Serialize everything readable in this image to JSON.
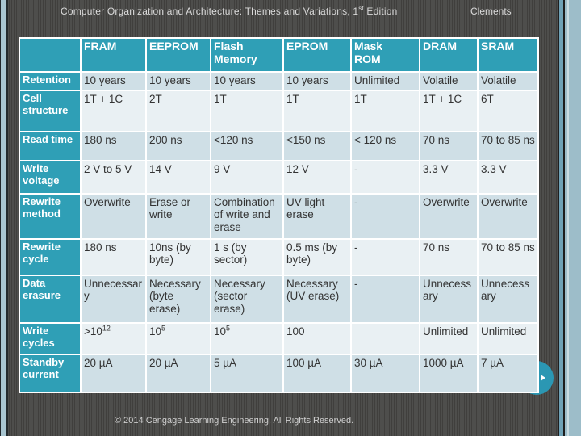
{
  "header": {
    "title_pre": "Computer Organization and Architecture: Themes and Variations, 1",
    "title_sup": "st",
    "title_post": " Edition",
    "author": "Clements"
  },
  "footer": {
    "copyright": "© 2014 Cengage Learning Engineering. All Rights Reserved."
  },
  "colors": {
    "header_teal": "#2f9fb6",
    "row_band_dark": "#cfdfe6",
    "row_band_light": "#e9f0f3",
    "background_gray": "#454543",
    "frame_blue_light": "#9dbdc9",
    "frame_blue_medium": "#6fa2b6",
    "nav_circle_teal": "#2b97b3",
    "gridline_white": "#ffffff"
  },
  "nav": {
    "icon": "forward-arrow-icon"
  },
  "table": {
    "columns": [
      "",
      "FRAM",
      "EEPROM",
      "Flash\nMemory",
      "EPROM",
      "Mask\nROM",
      "DRAM",
      "SRAM"
    ],
    "rows": [
      {
        "label": "Retention",
        "cells": [
          "10 years",
          "10 years",
          "10 years",
          "10 years",
          "Unlimited",
          "Volatile",
          "Volatile"
        ]
      },
      {
        "label": "Cell structure",
        "cells": [
          "1T + 1C",
          "2T",
          "1T",
          "1T",
          "1T",
          "1T + 1C",
          "6T"
        ]
      },
      {
        "label": "Read time",
        "cells": [
          "180 ns",
          "200 ns",
          "<120 ns",
          "<150 ns",
          "< 120 ns",
          "70 ns",
          "70 to 85 ns"
        ]
      },
      {
        "label": "Write voltage",
        "cells": [
          "2 V to 5 V",
          "14 V",
          "9 V",
          "12 V",
          "-",
          "3.3 V",
          "3.3 V"
        ]
      },
      {
        "label": "Rewrite method",
        "cells": [
          "Overwrite",
          "Erase or write",
          "Combination of write and erase",
          "UV light erase",
          "-",
          "Overwrite",
          "Overwrite"
        ]
      },
      {
        "label": "Rewrite cycle",
        "cells": [
          "180 ns",
          "10ns (by byte)",
          "1 s (by sector)",
          "0.5 ms (by byte)",
          "-",
          "70 ns",
          "70 to 85 ns"
        ]
      },
      {
        "label": "Data erasure",
        "cells": [
          "Unnecessary",
          "Necessary (byte erase)",
          "Necessary (sector erase)",
          "Necessary (UV erase)",
          "-",
          "Unnecessary",
          "Unnecessary"
        ]
      },
      {
        "label": "Write cycles",
        "cells": [
          ">10¹²",
          "10⁵",
          "10⁵",
          "100",
          "",
          "Unlimited",
          "Unlimited"
        ]
      },
      {
        "label": "Standby current",
        "cells": [
          "20 µA",
          "20 µA",
          "5 µA",
          "100 µA",
          "30 µA",
          "1000 µA",
          "7 µA"
        ]
      }
    ]
  }
}
